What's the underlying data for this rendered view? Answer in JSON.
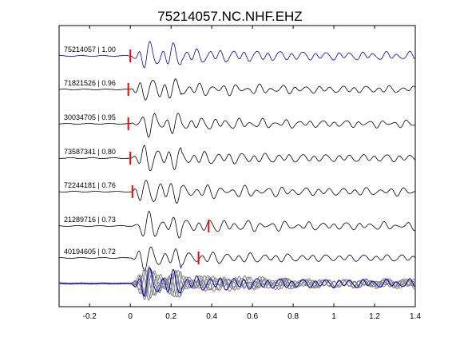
{
  "chart_data": {
    "type": "line",
    "title": "75214057.NC.NHF.EHZ",
    "xlabel": "",
    "ylabel": "",
    "xlim": [
      -0.35,
      1.4
    ],
    "xticks": [
      "-0.2",
      "0",
      "0.2",
      "0.4",
      "0.6",
      "0.8",
      "1",
      "1.2",
      "1.4"
    ],
    "xtick_values": [
      -0.2,
      0,
      0.2,
      0.4,
      0.6,
      0.8,
      1.0,
      1.2,
      1.4
    ],
    "grid": false,
    "colors": {
      "reference": "#0000cc",
      "trace": "#000000",
      "stack": "#808080",
      "pick": "#ff0000"
    },
    "series": [
      {
        "label": "75214057 | 1.00",
        "pick": 0.0,
        "seed": 1
      },
      {
        "label": "71821526 | 0.96",
        "pick": -0.01,
        "seed": 2
      },
      {
        "label": "30034705 | 0.95",
        "pick": -0.01,
        "seed": 3
      },
      {
        "label": "73587341 | 0.80",
        "pick": 0.0,
        "seed": 4
      },
      {
        "label": "72244181 | 0.76",
        "pick": 0.01,
        "seed": 5
      },
      {
        "label": "21289716 | 0.73",
        "pick": 0.385,
        "seed": 6
      },
      {
        "label": "40194605 | 0.72",
        "pick": 0.335,
        "seed": 7
      }
    ],
    "stack_label": "overlay"
  }
}
